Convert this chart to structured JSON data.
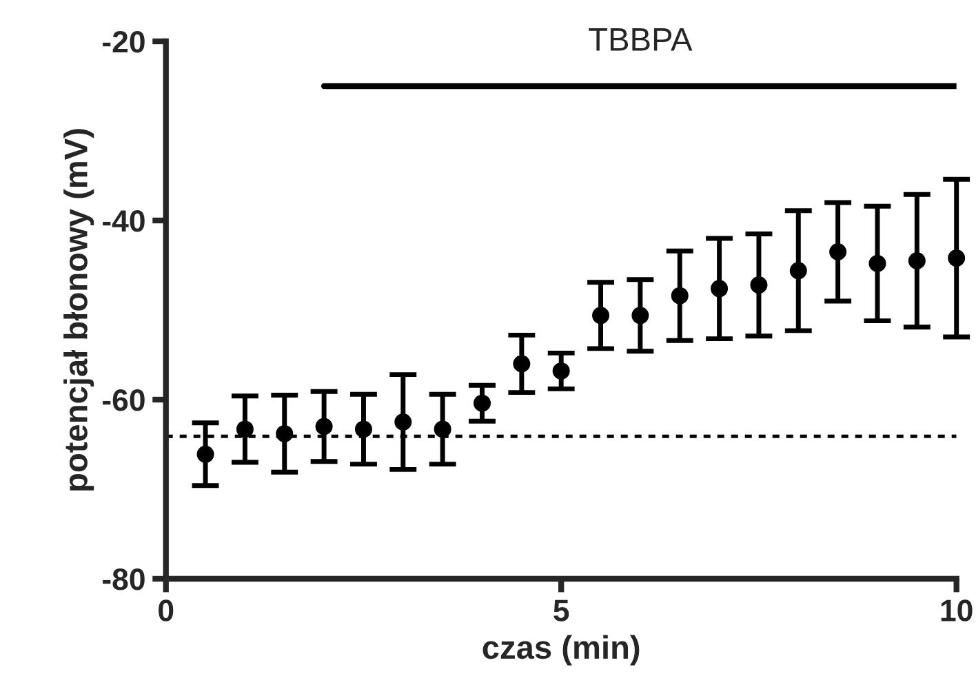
{
  "chart_data": {
    "type": "scatter",
    "xlabel": "czas (min)",
    "ylabel": "potencjał błonowy (mV)",
    "xlim": [
      0,
      10
    ],
    "xticks": [
      0,
      5,
      10
    ],
    "ylim": [
      -80,
      -20
    ],
    "yticks": [
      -80,
      -60,
      -40,
      -20
    ],
    "grid": false,
    "legend": false,
    "marker": "circle",
    "series": [
      {
        "color": "#000000",
        "x": [
          0.5,
          1,
          1.5,
          2,
          2.5,
          3,
          3.5,
          4,
          4.5,
          5,
          5.5,
          6,
          6.5,
          7,
          7.5,
          8,
          8.5,
          9,
          9.5,
          10
        ],
        "values": [
          -66.1,
          -63.3,
          -63.8,
          -63.0,
          -63.3,
          -62.5,
          -63.3,
          -60.4,
          -56.0,
          -56.8,
          -50.6,
          -50.6,
          -48.4,
          -47.6,
          -47.2,
          -45.6,
          -43.5,
          -44.8,
          -44.5,
          -44.2
        ],
        "errors": [
          3.5,
          3.7,
          4.3,
          3.9,
          3.9,
          5.3,
          3.9,
          2,
          3.2,
          2,
          3.7,
          4,
          5,
          5.6,
          5.7,
          6.7,
          5.5,
          6.4,
          7.4,
          8.8
        ]
      },
      {
        "type": "line",
        "color": "#000000",
        "x": [
          2,
          10
        ],
        "values": [
          -25,
          -25
        ],
        "line_style": "solid",
        "marker": "none"
      }
    ],
    "ref_lines": [
      {
        "axis": "y",
        "value": -64.1,
        "color": "#000000",
        "line_style": "dotted"
      }
    ],
    "annotations": [
      "TBBPA"
    ]
  }
}
